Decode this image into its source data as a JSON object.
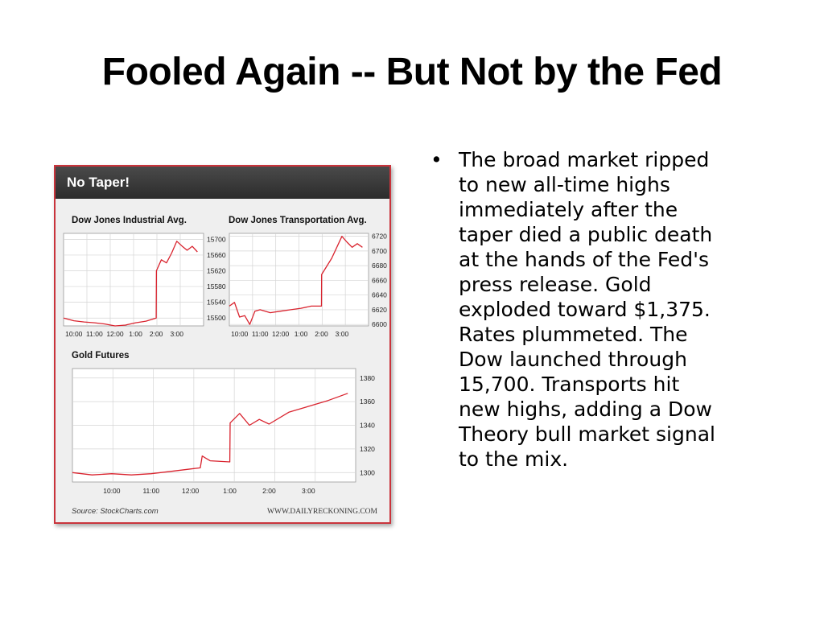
{
  "slide": {
    "title": "Fooled Again -- But Not by the Fed",
    "bullet_marker": "•",
    "bullet_text": "The broad market ripped\nto new all-time highs\nimmediately after the\ntaper died a public death\nat the hands of the Fed's\npress release. Gold\nexploded toward $1,375.\nRates plummeted. The\nDow launched through\n15,700. Transports hit\nnew highs, adding a Dow\nTheory bull market signal\nto the mix."
  },
  "figure": {
    "header": "No Taper!",
    "source": "Source: StockCharts.com",
    "website": "WWW.DAILYRECKONING.COM",
    "colors": {
      "line": "#d9232e",
      "border": "#c9343c",
      "header_bg": "#3a3a3a",
      "panel_bg": "#efefef"
    }
  },
  "chart_data": [
    {
      "type": "line",
      "title": "Dow Jones Industrial Avg.",
      "x_ticks": [
        "10:00",
        "11:00",
        "12:00",
        "1:00",
        "2:00",
        "3:00"
      ],
      "y_ticks": [
        15500,
        15540,
        15580,
        15620,
        15660,
        15700
      ],
      "ylim": [
        15480,
        15715
      ],
      "grid": true,
      "series": [
        {
          "x": [
            9.5,
            10,
            10.5,
            11,
            11.5,
            12,
            12.5,
            13,
            13.5,
            14,
            14.01,
            14.25,
            14.5,
            14.75,
            15,
            15.25,
            15.5,
            15.75,
            16
          ],
          "y": [
            15500,
            15493,
            15490,
            15488,
            15485,
            15480,
            15482,
            15488,
            15492,
            15500,
            15620,
            15648,
            15640,
            15665,
            15695,
            15683,
            15672,
            15682,
            15668
          ]
        }
      ]
    },
    {
      "type": "line",
      "title": "Dow Jones Transportation Avg.",
      "x_ticks": [
        "10:00",
        "11:00",
        "12:00",
        "1:00",
        "2:00",
        "3:00"
      ],
      "y_ticks": [
        6600,
        6620,
        6640,
        6660,
        6680,
        6700,
        6720
      ],
      "ylim": [
        6598,
        6724
      ],
      "grid": true,
      "series": [
        {
          "x": [
            9.5,
            9.75,
            10,
            10.25,
            10.5,
            10.75,
            11,
            11.5,
            12,
            12.5,
            13,
            13.5,
            14,
            14.01,
            14.5,
            15,
            15.25,
            15.5,
            15.75,
            16
          ],
          "y": [
            6625,
            6630,
            6610,
            6612,
            6600,
            6618,
            6620,
            6616,
            6618,
            6620,
            6622,
            6625,
            6625,
            6668,
            6690,
            6720,
            6712,
            6705,
            6710,
            6705
          ]
        }
      ]
    },
    {
      "type": "line",
      "title": "Gold Futures",
      "x_ticks": [
        "10:00",
        "11:00",
        "12:00",
        "1:00",
        "2:00",
        "3:00"
      ],
      "y_ticks": [
        1300,
        1320,
        1340,
        1360,
        1380
      ],
      "ylim": [
        1292,
        1388
      ],
      "grid": true,
      "series": [
        {
          "x": [
            9,
            9.5,
            10,
            10.5,
            11,
            11.5,
            12,
            12.25,
            12.3,
            12.5,
            13,
            13.01,
            13.25,
            13.5,
            13.75,
            14,
            14.5,
            15,
            15.5,
            16
          ],
          "y": [
            1300,
            1298,
            1299,
            1298,
            1299,
            1301,
            1303,
            1304,
            1314,
            1310,
            1309,
            1342,
            1350,
            1340,
            1345,
            1341,
            1351,
            1356,
            1361,
            1367
          ]
        }
      ]
    }
  ]
}
